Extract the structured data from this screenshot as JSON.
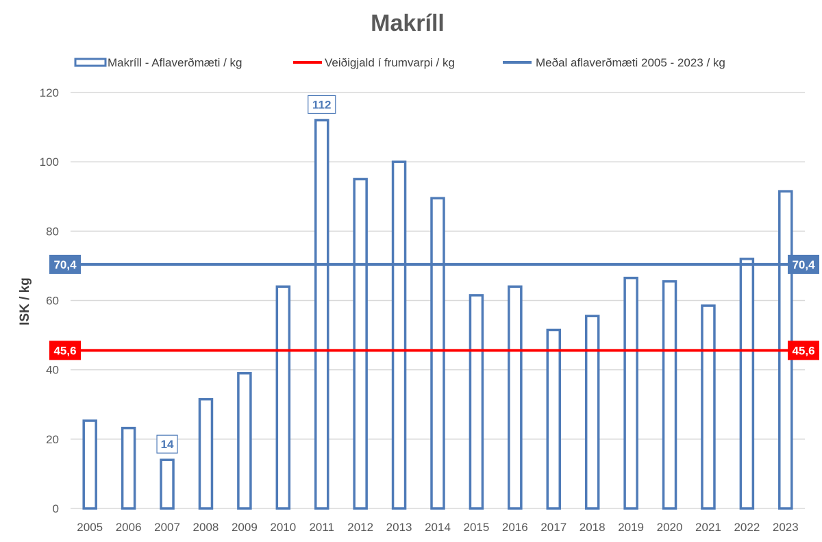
{
  "chart_data": {
    "type": "bar",
    "title": "Makríll",
    "xlabel": "",
    "ylabel": "ISK / kg",
    "ylim": [
      0,
      120
    ],
    "yticks": [
      0,
      20,
      40,
      60,
      80,
      100,
      120
    ],
    "grid": true,
    "legend_position": "top",
    "categories": [
      "2005",
      "2006",
      "2007",
      "2008",
      "2009",
      "2010",
      "2011",
      "2012",
      "2013",
      "2014",
      "2015",
      "2016",
      "2017",
      "2018",
      "2019",
      "2020",
      "2021",
      "2022",
      "2023"
    ],
    "series": [
      {
        "name": "Makríll - Aflaverðmæti / kg",
        "type": "bar",
        "style": "outline",
        "color": "#4f7bb8",
        "values": [
          25.3,
          23.2,
          14,
          31.5,
          39,
          64,
          112,
          95,
          100,
          89.5,
          61.5,
          64,
          51.5,
          55.5,
          66.5,
          65.5,
          58.5,
          72,
          91.5
        ],
        "data_labels": [
          {
            "category": "2007",
            "text": "14"
          },
          {
            "category": "2011",
            "text": "112"
          }
        ]
      },
      {
        "name": "Veiðigjald í frumvarpi / kg",
        "type": "line",
        "color": "#ff0000",
        "value": 45.6,
        "label": "45,6"
      },
      {
        "name": "Meðal aflaverðmæti 2005 - 2023 / kg",
        "type": "line",
        "color": "#4f7bb8",
        "value": 70.4,
        "label": "70,4"
      }
    ]
  }
}
